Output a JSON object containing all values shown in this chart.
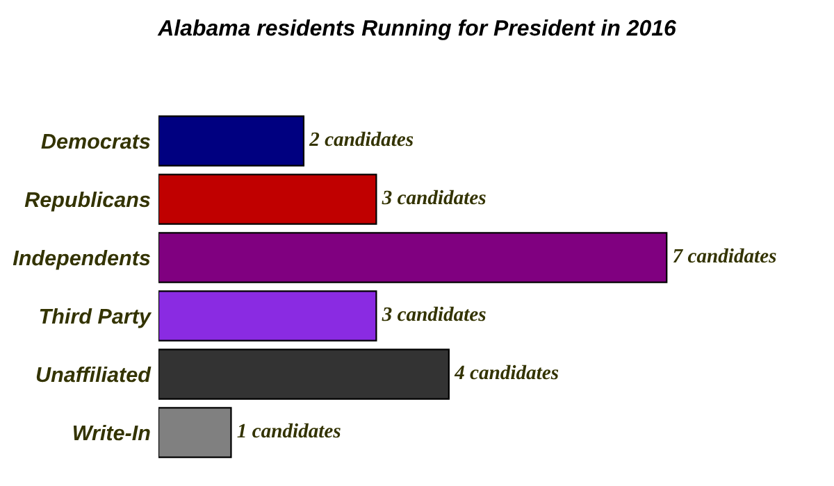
{
  "chart_data": {
    "type": "bar",
    "orientation": "horizontal",
    "title": "Alabama residents Running for President in 2016",
    "categories": [
      "Democrats",
      "Republicans",
      "Independents",
      "Third Party",
      "Unaffiliated",
      "Write-In"
    ],
    "values": [
      2,
      3,
      7,
      3,
      4,
      1
    ],
    "colors": [
      "#000080",
      "#c00000",
      "#800080",
      "#8a2be2",
      "#333333",
      "#808080"
    ],
    "value_labels": [
      "2 candidates",
      "3 candidates",
      "7 candidates",
      "3 candidates",
      "4 candidates",
      "1 candidates"
    ],
    "grid": false,
    "legend": false
  }
}
